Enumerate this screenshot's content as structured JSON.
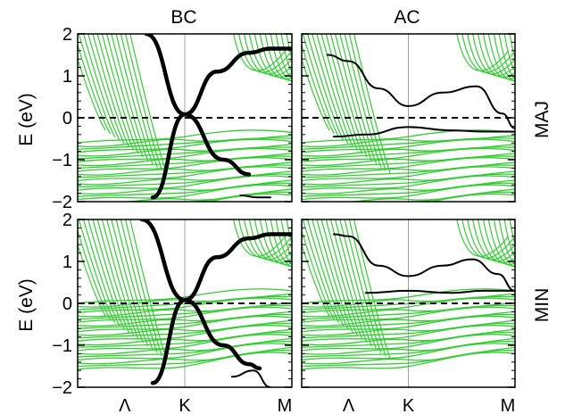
{
  "chart_data": {
    "type": "line",
    "figure": {
      "column_titles": [
        "BC",
        "AC"
      ],
      "row_labels": [
        "MAJ",
        "MIN"
      ],
      "ylabel": "E (eV)",
      "x_tick_labels": [
        "Λ",
        "K",
        "M"
      ],
      "y_ticks": [
        2,
        1,
        0,
        -1,
        -2
      ],
      "y_tick_labels": [
        "2",
        "1",
        "0",
        "−1",
        "−2"
      ],
      "ylim": [
        -2,
        2
      ],
      "xlim": [
        0,
        1
      ],
      "x_tick_positions": [
        0.22,
        0.5,
        1.0
      ],
      "fermi_level": 0,
      "colors": {
        "bulk_bands": "#33cc33",
        "edge_bands": "#000000",
        "fermi_line": "#000000",
        "k_line": "#888888"
      }
    },
    "panels": [
      {
        "column": "BC",
        "row": "MAJ",
        "edge_series": [
          {
            "x": [
              0.32,
              0.5,
              0.68,
              0.8
            ],
            "y": [
              2.0,
              0.08,
              -1.0,
              -1.35
            ]
          },
          {
            "x": [
              0.35,
              0.5,
              0.65,
              0.8,
              0.9,
              1.0
            ],
            "y": [
              -1.9,
              0.08,
              1.1,
              1.55,
              1.65,
              1.65
            ]
          },
          {
            "x": [
              0.76,
              0.84,
              0.9
            ],
            "y": [
              -1.85,
              -1.9,
              -1.9
            ]
          }
        ],
        "bulk_cond_offset": 0.0,
        "bulk_val_max": [
          -0.6,
          -0.45,
          -0.35
        ]
      },
      {
        "column": "AC",
        "row": "MAJ",
        "edge_series": [
          {
            "x": [
              0.12,
              0.22,
              0.36,
              0.5,
              0.66,
              0.82,
              0.94,
              1.0
            ],
            "y": [
              1.5,
              1.35,
              0.7,
              0.28,
              0.6,
              0.75,
              0.1,
              -0.25
            ]
          },
          {
            "x": [
              0.15,
              0.3,
              0.5,
              0.7,
              0.85,
              1.0
            ],
            "y": [
              -0.45,
              -0.4,
              -0.22,
              -0.3,
              -0.33,
              -0.33
            ]
          }
        ],
        "bulk_cond_offset": 0.0,
        "bulk_val_max": [
          -0.6,
          -0.45,
          -0.35
        ]
      },
      {
        "column": "BC",
        "row": "MIN",
        "edge_series": [
          {
            "x": [
              0.3,
              0.5,
              0.68,
              0.8,
              0.85
            ],
            "y": [
              2.0,
              0.08,
              -1.0,
              -1.45,
              -1.55
            ]
          },
          {
            "x": [
              0.35,
              0.5,
              0.65,
              0.8,
              0.9,
              1.0
            ],
            "y": [
              -1.9,
              0.08,
              1.1,
              1.55,
              1.65,
              1.65
            ]
          },
          {
            "x": [
              0.72,
              0.82,
              0.9
            ],
            "y": [
              -1.75,
              -1.6,
              -2.0
            ]
          }
        ],
        "bulk_cond_offset": 0.0,
        "bulk_val_max": [
          0.0,
          0.15,
          0.3
        ]
      },
      {
        "column": "AC",
        "row": "MIN",
        "edge_series": [
          {
            "x": [
              0.15,
              0.22,
              0.36,
              0.5,
              0.66,
              0.8,
              0.92,
              1.0
            ],
            "y": [
              1.65,
              1.6,
              0.9,
              0.65,
              0.9,
              1.05,
              0.7,
              0.3
            ]
          },
          {
            "x": [
              0.3,
              0.5,
              0.7,
              0.85,
              1.0
            ],
            "y": [
              0.25,
              0.3,
              0.25,
              0.3,
              0.3
            ]
          }
        ],
        "bulk_cond_offset": 0.0,
        "bulk_val_max": [
          0.0,
          0.15,
          0.3
        ]
      }
    ]
  }
}
